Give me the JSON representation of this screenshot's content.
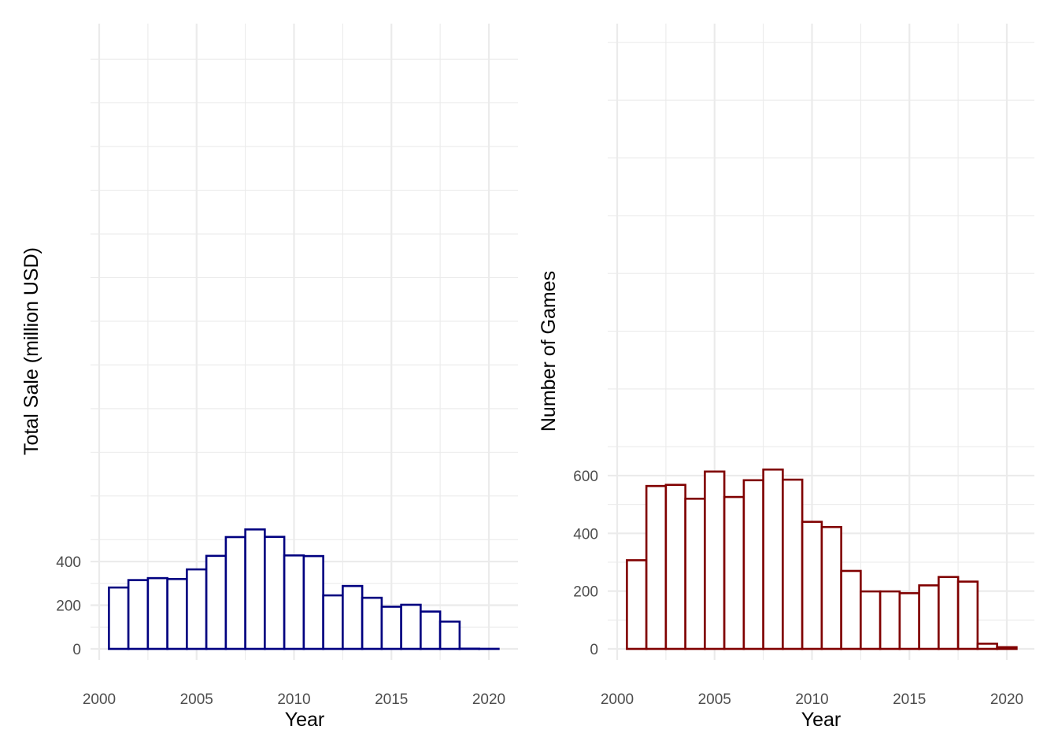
{
  "chart_data": [
    {
      "type": "bar",
      "title": "",
      "xlabel": "Year",
      "ylabel": "Total Sale (million USD)",
      "color": "#000080",
      "fill": "#ffffff",
      "grid": true,
      "xlim": [
        2000,
        2020
      ],
      "ylim": [
        0,
        550
      ],
      "x_ticks": [
        2000,
        2005,
        2010,
        2015,
        2020
      ],
      "y_ticks": [
        0,
        200,
        400
      ],
      "x": [
        2001,
        2002,
        2003,
        2004,
        2005,
        2006,
        2007,
        2008,
        2009,
        2010,
        2011,
        2012,
        2013,
        2014,
        2015,
        2016,
        2017,
        2018,
        2019,
        2020
      ],
      "values": [
        281,
        315,
        324,
        320,
        364,
        426,
        512,
        547,
        513,
        428,
        425,
        245,
        288,
        234,
        193,
        202,
        171,
        125,
        1,
        0.3
      ]
    },
    {
      "type": "bar",
      "title": "",
      "xlabel": "Year",
      "ylabel": "Number of Games",
      "color": "#800000",
      "fill": "#ffffff",
      "grid": true,
      "xlim": [
        2000,
        2020
      ],
      "ylim": [
        0,
        622
      ],
      "x_ticks": [
        2000,
        2005,
        2010,
        2015,
        2020
      ],
      "y_ticks": [
        0,
        200,
        400,
        600
      ],
      "x": [
        2001,
        2002,
        2003,
        2004,
        2005,
        2006,
        2007,
        2008,
        2009,
        2010,
        2011,
        2012,
        2013,
        2014,
        2015,
        2016,
        2017,
        2018,
        2019,
        2020
      ],
      "values": [
        307,
        564,
        568,
        520,
        614,
        526,
        584,
        621,
        586,
        440,
        422,
        270,
        199,
        199,
        193,
        220,
        249,
        233,
        18,
        6
      ]
    }
  ]
}
